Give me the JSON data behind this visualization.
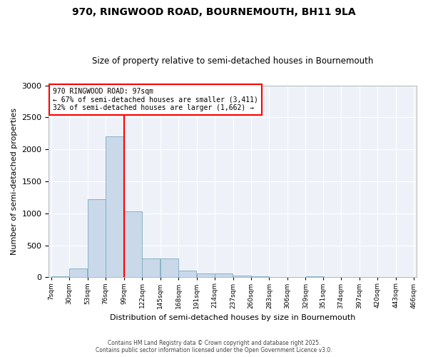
{
  "title1": "970, RINGWOOD ROAD, BOURNEMOUTH, BH11 9LA",
  "title2": "Size of property relative to semi-detached houses in Bournemouth",
  "xlabel": "Distribution of semi-detached houses by size in Bournemouth",
  "ylabel": "Number of semi-detached properties",
  "bin_edges": [
    7,
    30,
    53,
    76,
    99,
    122,
    145,
    168,
    191,
    214,
    237,
    260,
    283,
    306,
    329,
    351,
    374,
    397,
    420,
    443,
    466
  ],
  "bar_heights": [
    20,
    140,
    1220,
    2200,
    1030,
    290,
    290,
    100,
    55,
    55,
    30,
    20,
    0,
    0,
    20,
    0,
    0,
    0,
    0,
    0
  ],
  "bar_color": "#c9d9ea",
  "bar_edge_color": "#7aaabf",
  "bg_color": "#eef2f8",
  "grid_color": "#ffffff",
  "red_line_x": 99,
  "annotation_title": "970 RINGWOOD ROAD: 97sqm",
  "annotation_line1": "← 67% of semi-detached houses are smaller (3,411)",
  "annotation_line2": "32% of semi-detached houses are larger (1,662) →",
  "ylim": [
    0,
    3000
  ],
  "yticks": [
    0,
    500,
    1000,
    1500,
    2000,
    2500,
    3000
  ],
  "footer1": "Contains HM Land Registry data © Crown copyright and database right 2025.",
  "footer2": "Contains public sector information licensed under the Open Government Licence v3.0."
}
